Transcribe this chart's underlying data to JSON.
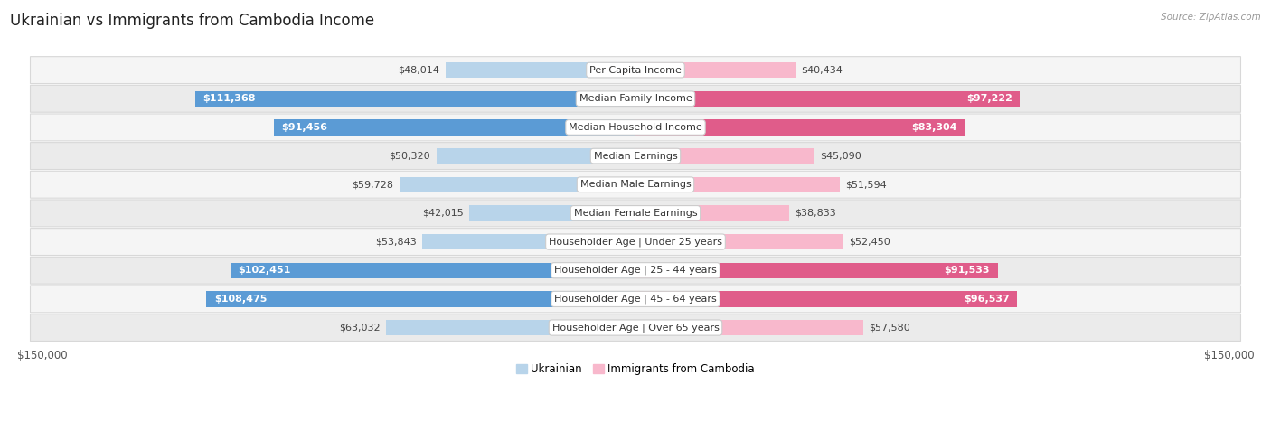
{
  "title": "Ukrainian vs Immigrants from Cambodia Income",
  "source": "Source: ZipAtlas.com",
  "categories": [
    "Per Capita Income",
    "Median Family Income",
    "Median Household Income",
    "Median Earnings",
    "Median Male Earnings",
    "Median Female Earnings",
    "Householder Age | Under 25 years",
    "Householder Age | 25 - 44 years",
    "Householder Age | 45 - 64 years",
    "Householder Age | Over 65 years"
  ],
  "ukrainian_values": [
    48014,
    111368,
    91456,
    50320,
    59728,
    42015,
    53843,
    102451,
    108475,
    63032
  ],
  "cambodia_values": [
    40434,
    97222,
    83304,
    45090,
    51594,
    38833,
    52450,
    91533,
    96537,
    57580
  ],
  "ukrainian_labels": [
    "$48,014",
    "$111,368",
    "$91,456",
    "$50,320",
    "$59,728",
    "$42,015",
    "$53,843",
    "$102,451",
    "$108,475",
    "$63,032"
  ],
  "cambodia_labels": [
    "$40,434",
    "$97,222",
    "$83,304",
    "$45,090",
    "$51,594",
    "$38,833",
    "$52,450",
    "$91,533",
    "$96,537",
    "$57,580"
  ],
  "max_value": 150000,
  "ukr_light": "#b8d4ea",
  "ukr_dark": "#5b9bd5",
  "cam_light": "#f8b8cc",
  "cam_dark": "#e05c8a",
  "inside_label_threshold": 65000,
  "background_color": "#ffffff",
  "row_bg": "#f2f2f2",
  "title_fontsize": 12,
  "bar_label_fontsize": 8,
  "category_fontsize": 8,
  "axis_fontsize": 8.5,
  "legend_fontsize": 8.5
}
